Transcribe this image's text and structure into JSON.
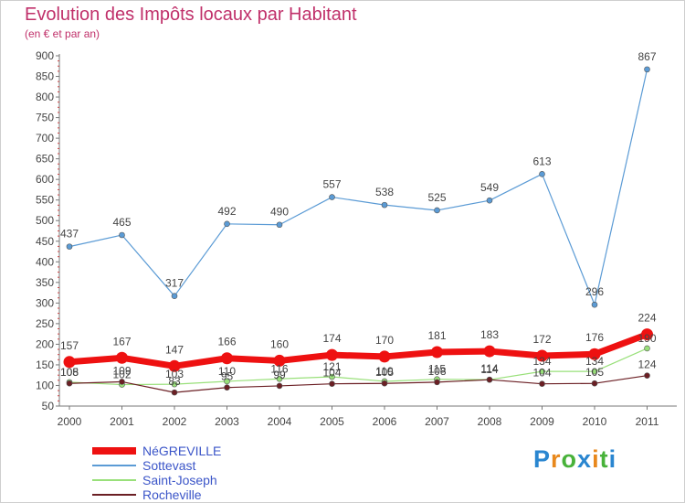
{
  "chart_data": {
    "type": "line",
    "title": "Evolution des Impôts locaux par Habitant",
    "subtitle": "(en € et par an)",
    "xlabel": "",
    "ylabel": "",
    "ylim": [
      50,
      900
    ],
    "yticks": [
      50,
      100,
      150,
      200,
      250,
      300,
      350,
      400,
      450,
      500,
      550,
      600,
      650,
      700,
      750,
      800,
      850,
      900
    ],
    "categories": [
      "2000",
      "2001",
      "2002",
      "2003",
      "2004",
      "2005",
      "2006",
      "2007",
      "2008",
      "2009",
      "2010",
      "2011"
    ],
    "series": [
      {
        "name": "Sottevast",
        "color": "#5b9bd5",
        "values": [
          437,
          465,
          317,
          492,
          490,
          557,
          538,
          525,
          549,
          613,
          296,
          867
        ]
      },
      {
        "name": "Saint-Joseph",
        "color": "#99e07a",
        "values": [
          108,
          102,
          103,
          110,
          116,
          121,
          110,
          115,
          114,
          134,
          134,
          190
        ]
      },
      {
        "name": "Rocheville",
        "color": "#6b1f24",
        "values": [
          105,
          109,
          83,
          95,
          99,
          104,
          105,
          108,
          114,
          104,
          105,
          124
        ]
      },
      {
        "name": "NéGREVILLE",
        "color": "#ee1111",
        "values": [
          157,
          167,
          147,
          166,
          160,
          174,
          170,
          181,
          183,
          172,
          176,
          224
        ]
      }
    ],
    "label_series": [
      "Sottevast",
      "NéGREVILLE",
      "Saint-Joseph",
      "Rocheville"
    ],
    "legend": [
      "NéGREVILLE",
      "Sottevast",
      "Saint-Joseph",
      "Rocheville"
    ],
    "legend_position": "bottom-left",
    "grid": false
  },
  "logo": {
    "text": "Proxiti",
    "colors": [
      "#2a86d0",
      "#e8881c",
      "#48b23a",
      "#2a86d0",
      "#e8881c",
      "#48b23a",
      "#2a86d0"
    ]
  }
}
